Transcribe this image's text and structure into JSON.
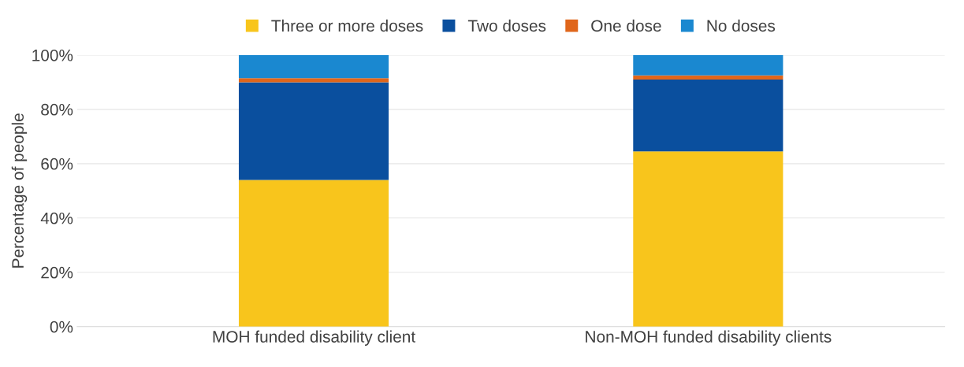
{
  "chart_data": {
    "type": "bar",
    "stacked": true,
    "ylabel": "Percentage of people",
    "categories": [
      "MOH funded disability client",
      "Non-MOH funded disability clients"
    ],
    "series": [
      {
        "name": "Three or more doses",
        "color": "#f8c51c",
        "values": [
          54,
          64.5
        ]
      },
      {
        "name": "Two doses",
        "color": "#0a4f9e",
        "values": [
          36,
          26.5
        ]
      },
      {
        "name": "One dose",
        "color": "#e0661b",
        "values": [
          1.5,
          1.5
        ]
      },
      {
        "name": "No doses",
        "color": "#1a88d0",
        "values": [
          8.5,
          7.5
        ]
      }
    ],
    "ylim": [
      0,
      100
    ],
    "yticks": [
      {
        "value": 0,
        "label": "0%"
      },
      {
        "value": 20,
        "label": "20%"
      },
      {
        "value": 40,
        "label": "40%"
      },
      {
        "value": 60,
        "label": "60%"
      },
      {
        "value": 80,
        "label": "80%"
      },
      {
        "value": 100,
        "label": "100%"
      }
    ],
    "grid": "y",
    "legend": "top"
  }
}
